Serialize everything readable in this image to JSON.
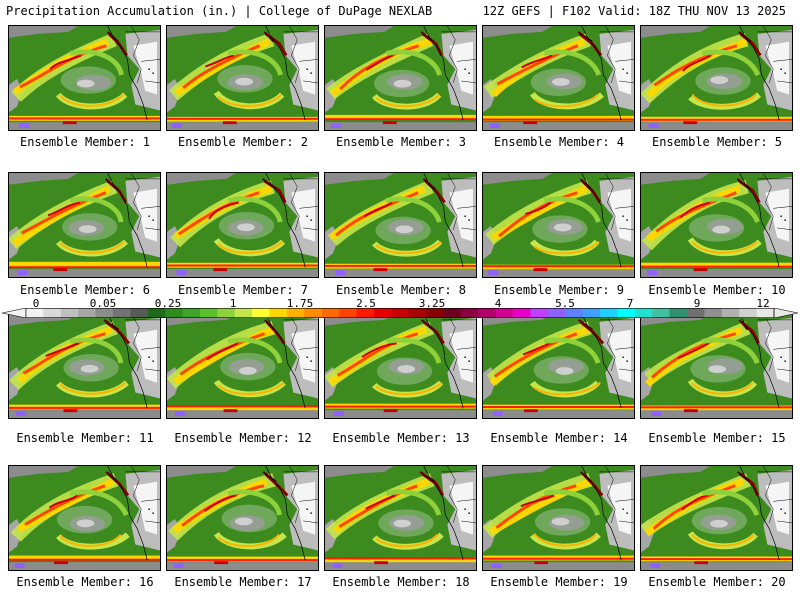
{
  "header": {
    "left_title": "Precipitation Accumulation (in.) | College of DuPage NEXLAB",
    "right_title": "12Z GEFS | F102 Valid: 18Z THU NOV 13 2025"
  },
  "panels": [
    {
      "label": "Ensemble Member: 1"
    },
    {
      "label": "Ensemble Member: 2"
    },
    {
      "label": "Ensemble Member: 3"
    },
    {
      "label": "Ensemble Member: 4"
    },
    {
      "label": "Ensemble Member: 5"
    },
    {
      "label": "Ensemble Member: 6"
    },
    {
      "label": "Ensemble Member: 7"
    },
    {
      "label": "Ensemble Member: 8"
    },
    {
      "label": "Ensemble Member: 9"
    },
    {
      "label": "Ensemble Member: 10"
    },
    {
      "label": "Ensemble Member: 11"
    },
    {
      "label": "Ensemble Member: 12"
    },
    {
      "label": "Ensemble Member: 13"
    },
    {
      "label": "Ensemble Member: 14"
    },
    {
      "label": "Ensemble Member: 15"
    },
    {
      "label": "Ensemble Member: 16"
    },
    {
      "label": "Ensemble Member: 17"
    },
    {
      "label": "Ensemble Member: 18"
    },
    {
      "label": "Ensemble Member: 19"
    },
    {
      "label": "Ensemble Member: 20"
    }
  ],
  "colorbar": {
    "labels": [
      "0",
      "0.05",
      "0.25",
      "1",
      "1.75",
      "2.5",
      "3.25",
      "4",
      "5.5",
      "7",
      "9",
      "12"
    ],
    "colors": [
      "#f2f2f2",
      "#d9d9d9",
      "#bfbfbf",
      "#a6a6a6",
      "#8c8c8c",
      "#737373",
      "#5a5a5a",
      "#1e6b1e",
      "#2e8b1e",
      "#3fa32a",
      "#5cbf2a",
      "#8ed13a",
      "#c4e64a",
      "#ffff33",
      "#ffd700",
      "#ffb000",
      "#ff8c00",
      "#ff6a00",
      "#ff4500",
      "#ff1a00",
      "#e60000",
      "#c80000",
      "#a80000",
      "#880000",
      "#700020",
      "#8b0045",
      "#b0006a",
      "#d10090",
      "#e600c8",
      "#c040ff",
      "#9060ff",
      "#6080ff",
      "#40a0ff",
      "#20d0ff",
      "#00ffff",
      "#20e0d0",
      "#40c0a0",
      "#309070",
      "#707070",
      "#909090",
      "#b0b0b0",
      "#d0d0d0",
      "#e8e8e8"
    ]
  }
}
